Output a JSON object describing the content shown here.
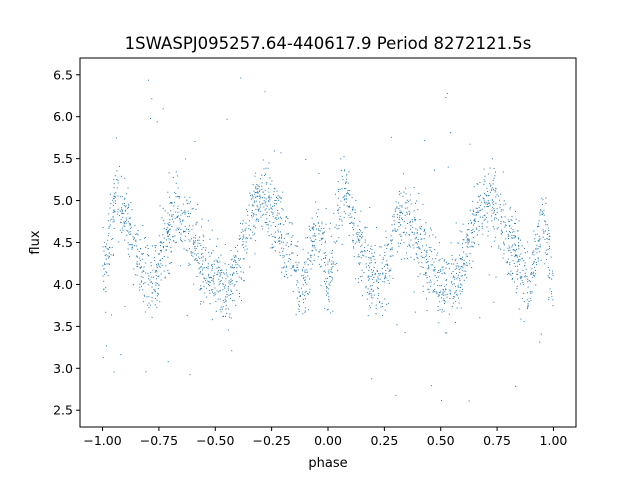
{
  "chart_data": {
    "type": "scatter",
    "title": "1SWASPJ095257.64-440617.9 Period 8272121.5s",
    "xlabel": "phase",
    "ylabel": "flux",
    "xlim": [
      -1.1,
      1.1
    ],
    "ylim": [
      2.3,
      6.7
    ],
    "xticks": [
      -1.0,
      -0.75,
      -0.5,
      -0.25,
      0.0,
      0.25,
      0.5,
      0.75,
      1.0
    ],
    "xtick_labels": [
      "−1.00",
      "−0.75",
      "−0.50",
      "−0.25",
      "0.00",
      "0.25",
      "0.50",
      "0.75",
      "1.00"
    ],
    "yticks": [
      2.5,
      3.0,
      3.5,
      4.0,
      4.5,
      5.0,
      5.5,
      6.0,
      6.5
    ],
    "ytick_labels": [
      "2.5",
      "3.0",
      "3.5",
      "4.0",
      "4.5",
      "5.0",
      "5.5",
      "6.0",
      "6.5"
    ],
    "grid": false,
    "marker_color": "#1f77b4",
    "series": [
      {
        "phase_range": [
          -1.0,
          1.0
        ],
        "profile_phase": [
          0.0,
          0.03,
          0.06,
          0.09,
          0.12,
          0.15,
          0.18,
          0.21,
          0.24,
          0.27,
          0.3,
          0.33,
          0.36,
          0.39,
          0.42,
          0.45,
          0.48,
          0.5,
          0.53,
          0.56,
          0.59,
          0.62,
          0.65,
          0.68,
          0.71,
          0.74,
          0.77,
          0.8,
          0.83,
          0.86,
          0.89,
          0.92,
          0.95,
          0.98,
          1.0
        ],
        "profile_flux": [
          4.05,
          4.45,
          5.1,
          4.95,
          4.6,
          4.35,
          4.15,
          4.05,
          4.1,
          4.4,
          4.7,
          4.85,
          4.75,
          4.6,
          4.4,
          4.2,
          4.05,
          4.05,
          3.95,
          3.95,
          4.15,
          4.4,
          4.75,
          5.0,
          5.0,
          4.9,
          4.75,
          4.55,
          4.35,
          4.1,
          4.0,
          4.3,
          4.75,
          4.35,
          4.05
        ],
        "scatter_sigma": 0.22
      }
    ]
  }
}
